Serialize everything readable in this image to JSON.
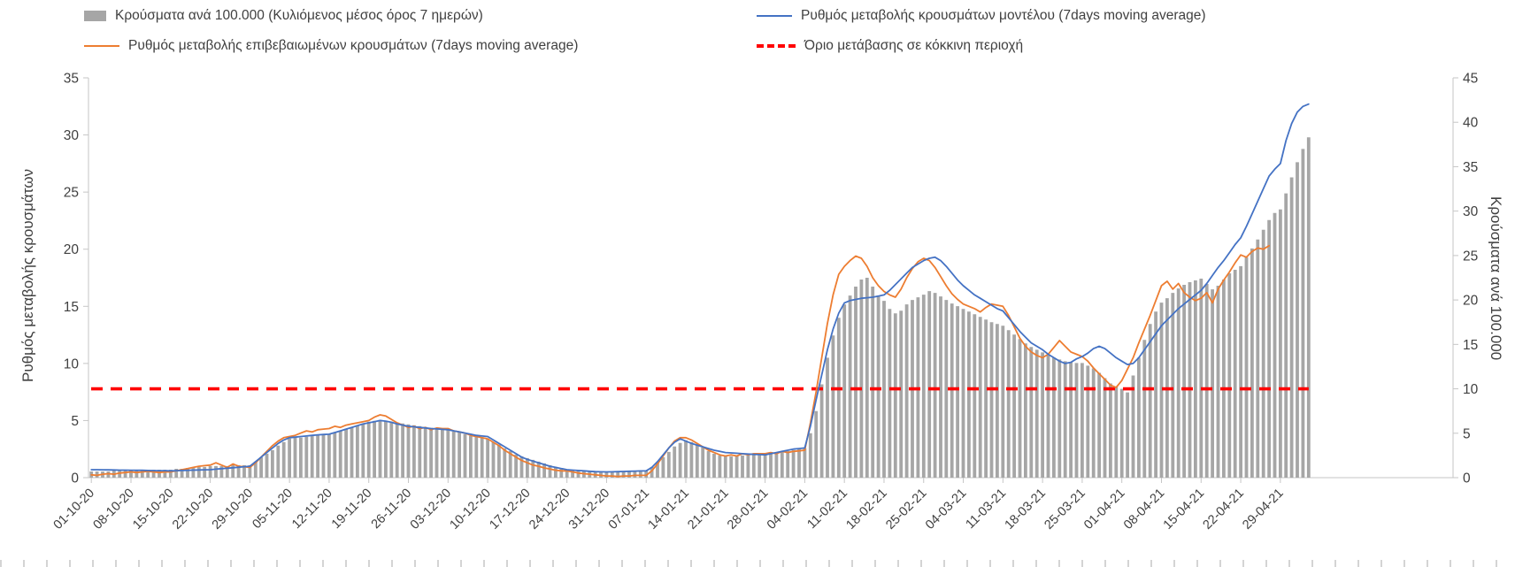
{
  "chart_data": {
    "type": "combo (bar + line)",
    "title": "",
    "x_start": "01-10-20",
    "frequency": "daily",
    "x_tick_labels": [
      "01-10-20",
      "08-10-20",
      "15-10-20",
      "22-10-20",
      "29-10-20",
      "05-11-20",
      "12-11-20",
      "19-11-20",
      "26-11-20",
      "03-12-20",
      "10-12-20",
      "17-12-20",
      "24-12-20",
      "31-12-20",
      "07-01-21",
      "14-01-21",
      "21-01-21",
      "28-01-21",
      "04-02-21",
      "11-02-21",
      "18-02-21",
      "25-02-21",
      "04-03-21",
      "11-03-21",
      "18-03-21",
      "25-03-21",
      "01-04-21",
      "08-04-21",
      "15-04-21",
      "22-04-21",
      "29-04-21"
    ],
    "left_axis": {
      "title": "Ρυθμός μεταβολής κρουσμάτων",
      "min": 0,
      "max": 35,
      "ticks": [
        0,
        5,
        10,
        15,
        20,
        25,
        30,
        35
      ]
    },
    "right_axis": {
      "title": "Κρούσματα ανά 100.000",
      "min": 0,
      "max": 45,
      "ticks": [
        0,
        5,
        10,
        15,
        20,
        25,
        30,
        35,
        40,
        45
      ]
    },
    "threshold": {
      "label": "Όριο μετάβασης σε κόκκινη περιοχή",
      "value_right_axis": 10,
      "color": "#ff0000",
      "style": "dashed"
    },
    "legend_position": "top",
    "grid": false,
    "series": [
      {
        "name": "Κρούσματα ανά 100.000 (Κυλιόμενος μέσος όρος 7 ημερών)",
        "type": "bar",
        "axis": "right",
        "color": "#a6a6a6",
        "values": [
          0.7,
          0.7,
          0.7,
          0.7,
          0.8,
          0.8,
          0.8,
          0.8,
          0.8,
          0.8,
          0.8,
          0.9,
          0.9,
          0.9,
          0.9,
          1.0,
          1.0,
          1.1,
          1.1,
          1.2,
          1.2,
          1.3,
          1.3,
          1.3,
          1.3,
          1.4,
          1.4,
          1.4,
          1.4,
          1.8,
          2.3,
          2.7,
          3.1,
          3.6,
          4.0,
          4.4,
          4.5,
          4.5,
          4.6,
          4.7,
          4.8,
          4.8,
          4.9,
          5.1,
          5.3,
          5.5,
          5.7,
          5.9,
          6.1,
          6.3,
          6.4,
          6.5,
          6.4,
          6.3,
          6.2,
          6.1,
          6.0,
          5.9,
          5.8,
          5.7,
          5.6,
          5.5,
          5.5,
          5.4,
          5.2,
          5.1,
          4.9,
          4.7,
          4.6,
          4.5,
          4.4,
          4.0,
          3.7,
          3.3,
          3.0,
          2.6,
          2.4,
          2.2,
          2.0,
          1.8,
          1.6,
          1.4,
          1.2,
          1.0,
          0.9,
          0.9,
          0.8,
          0.8,
          0.8,
          0.7,
          0.7,
          0.7,
          0.7,
          0.7,
          0.7,
          0.8,
          0.8,
          0.8,
          0.8,
          1.2,
          1.7,
          2.3,
          2.9,
          3.5,
          3.9,
          4.2,
          4.0,
          3.7,
          3.4,
          3.0,
          2.7,
          2.5,
          2.4,
          2.4,
          2.5,
          2.5,
          2.5,
          2.6,
          2.6,
          2.6,
          2.7,
          2.8,
          2.9,
          3.0,
          3.1,
          3.2,
          3.3,
          5.0,
          7.5,
          10.5,
          13.5,
          16.0,
          18.0,
          19.5,
          20.5,
          21.5,
          22.3,
          22.5,
          21.5,
          20.5,
          19.9,
          19.0,
          18.5,
          18.8,
          19.5,
          20.0,
          20.3,
          20.6,
          21.0,
          20.8,
          20.4,
          20.0,
          19.6,
          19.3,
          19.0,
          18.7,
          18.4,
          18.1,
          17.8,
          17.5,
          17.3,
          17.1,
          16.6,
          16.1,
          15.6,
          15.1,
          14.7,
          14.4,
          14.1,
          13.8,
          13.5,
          13.3,
          13.1,
          13.0,
          12.9,
          12.9,
          12.6,
          12.3,
          11.8,
          11.2,
          10.6,
          10.2,
          10.0,
          9.6,
          11.5,
          13.5,
          15.5,
          17.3,
          18.7,
          19.7,
          20.2,
          20.8,
          21.3,
          21.7,
          22.0,
          22.2,
          22.4,
          21.8,
          21.2,
          21.6,
          22.3,
          23.0,
          23.4,
          23.8,
          24.8,
          25.8,
          26.8,
          27.9,
          29.0,
          29.8,
          30.2,
          32.0,
          33.8,
          35.5,
          37.0,
          38.3
        ]
      },
      {
        "name": "Ρυθμός μεταβολής κρουσμάτων μοντέλου (7days moving average)",
        "type": "line",
        "axis": "left",
        "color": "#4472c4",
        "values": [
          0.7,
          0.7,
          0.69,
          0.68,
          0.67,
          0.66,
          0.66,
          0.65,
          0.64,
          0.64,
          0.63,
          0.62,
          0.61,
          0.61,
          0.6,
          0.61,
          0.63,
          0.64,
          0.66,
          0.67,
          0.69,
          0.7,
          0.74,
          0.79,
          0.83,
          0.87,
          0.91,
          0.96,
          1.0,
          1.4,
          1.8,
          2.2,
          2.6,
          3.0,
          3.3,
          3.5,
          3.55,
          3.6,
          3.65,
          3.7,
          3.75,
          3.78,
          3.8,
          3.95,
          4.1,
          4.25,
          4.4,
          4.55,
          4.7,
          4.8,
          4.9,
          5.0,
          4.95,
          4.85,
          4.7,
          4.6,
          4.5,
          4.45,
          4.4,
          4.35,
          4.3,
          4.27,
          4.23,
          4.2,
          4.1,
          4.0,
          3.9,
          3.8,
          3.7,
          3.65,
          3.6,
          3.3,
          3.0,
          2.7,
          2.4,
          2.1,
          1.8,
          1.6,
          1.45,
          1.3,
          1.15,
          1.0,
          0.9,
          0.8,
          0.7,
          0.66,
          0.63,
          0.6,
          0.56,
          0.53,
          0.51,
          0.5,
          0.51,
          0.53,
          0.54,
          0.56,
          0.57,
          0.59,
          0.6,
          0.9,
          1.4,
          2.0,
          2.6,
          3.1,
          3.4,
          3.2,
          3.0,
          2.85,
          2.7,
          2.55,
          2.4,
          2.3,
          2.2,
          2.17,
          2.14,
          2.1,
          2.07,
          2.04,
          2.02,
          2.0,
          2.1,
          2.2,
          2.3,
          2.4,
          2.5,
          2.55,
          2.6,
          4.5,
          6.8,
          9.0,
          11.2,
          13.0,
          14.4,
          15.3,
          15.5,
          15.6,
          15.7,
          15.75,
          15.8,
          15.9,
          16.0,
          16.4,
          16.9,
          17.4,
          17.9,
          18.4,
          18.7,
          19.0,
          19.2,
          19.3,
          19.0,
          18.5,
          17.9,
          17.3,
          16.8,
          16.4,
          16.0,
          15.7,
          15.4,
          15.1,
          14.8,
          14.6,
          14.0,
          13.4,
          12.8,
          12.3,
          11.8,
          11.5,
          11.2,
          10.8,
          10.5,
          10.2,
          10.0,
          10.1,
          10.4,
          10.6,
          10.9,
          11.3,
          11.5,
          11.3,
          10.9,
          10.5,
          10.2,
          9.9,
          10.0,
          10.5,
          11.2,
          11.9,
          12.6,
          13.3,
          13.8,
          14.3,
          14.8,
          15.2,
          15.6,
          16.0,
          16.4,
          17.0,
          17.7,
          18.4,
          19.0,
          19.7,
          20.4,
          21.0,
          22.0,
          23.1,
          24.2,
          25.3,
          26.4,
          27.0,
          27.5,
          29.5,
          31.0,
          32.0,
          32.5,
          32.7
        ]
      },
      {
        "name": "Ρυθμός μεταβολής επιβεβαιωμένων κρουσμάτων (7days moving average)",
        "type": "line",
        "axis": "left",
        "color": "#ed7d31",
        "values": [
          0.25,
          0.2,
          0.3,
          0.35,
          0.3,
          0.4,
          0.45,
          0.5,
          0.45,
          0.5,
          0.55,
          0.5,
          0.45,
          0.5,
          0.5,
          0.6,
          0.7,
          0.8,
          0.9,
          1.0,
          1.05,
          1.1,
          1.3,
          1.1,
          0.9,
          1.2,
          1.0,
          0.95,
          0.9,
          1.3,
          1.8,
          2.3,
          2.8,
          3.2,
          3.5,
          3.6,
          3.7,
          3.9,
          4.1,
          4.0,
          4.2,
          4.25,
          4.3,
          4.5,
          4.4,
          4.6,
          4.7,
          4.8,
          4.9,
          5.0,
          5.3,
          5.5,
          5.4,
          5.1,
          4.8,
          4.6,
          4.4,
          4.5,
          4.3,
          4.4,
          4.2,
          4.35,
          4.3,
          4.3,
          4.1,
          4.0,
          3.9,
          3.7,
          3.6,
          3.5,
          3.4,
          3.1,
          2.8,
          2.4,
          2.1,
          1.8,
          1.5,
          1.3,
          1.1,
          1.0,
          0.85,
          0.75,
          0.65,
          0.6,
          0.6,
          0.5,
          0.4,
          0.35,
          0.3,
          0.25,
          0.2,
          0.15,
          0.15,
          0.1,
          0.15,
          0.15,
          0.2,
          0.2,
          0.2,
          0.6,
          1.2,
          1.9,
          2.6,
          3.2,
          3.5,
          3.5,
          3.3,
          3.0,
          2.7,
          2.4,
          2.2,
          2.0,
          1.9,
          2.0,
          1.9,
          2.1,
          2.0,
          2.1,
          2.1,
          2.1,
          2.2,
          2.1,
          2.3,
          2.2,
          2.3,
          2.35,
          2.4,
          4.8,
          7.5,
          10.5,
          13.5,
          16.0,
          17.8,
          18.5,
          19.0,
          19.4,
          19.2,
          18.5,
          17.5,
          16.8,
          16.3,
          16.0,
          15.8,
          16.5,
          17.5,
          18.3,
          18.9,
          19.2,
          19.0,
          18.4,
          17.6,
          16.8,
          16.1,
          15.6,
          15.2,
          15.0,
          14.8,
          14.5,
          14.9,
          15.2,
          15.1,
          15.0,
          14.2,
          13.2,
          12.2,
          11.5,
          11.0,
          10.7,
          10.5,
          10.8,
          11.4,
          12.0,
          11.5,
          11.0,
          10.8,
          10.6,
          10.2,
          9.6,
          9.1,
          8.6,
          8.1,
          7.9,
          8.5,
          9.5,
          10.5,
          11.8,
          13.0,
          14.2,
          15.5,
          16.8,
          17.2,
          16.5,
          17.0,
          16.2,
          15.8,
          15.5,
          15.7,
          16.2,
          15.3,
          16.5,
          17.3,
          18.0,
          18.8,
          19.5,
          19.3,
          19.8,
          20.1,
          20.0,
          20.3
        ]
      }
    ]
  }
}
